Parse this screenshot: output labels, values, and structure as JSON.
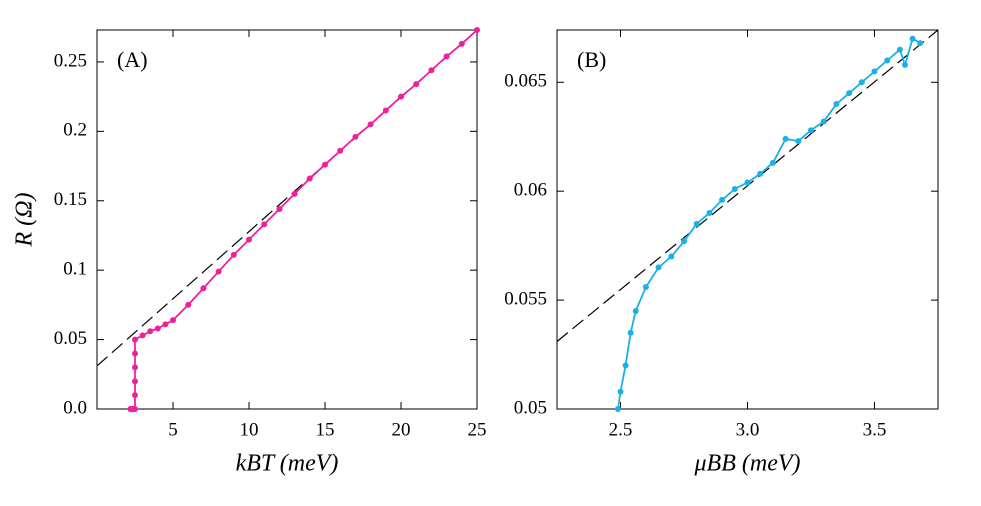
{
  "chart_data": [
    {
      "type": "line",
      "annotation": "(A)",
      "x_label": "kBT (meV)",
      "y_label": "R (Ω)",
      "xlim": [
        0,
        25
      ],
      "ylim": [
        0,
        0.273
      ],
      "xticks": [
        5,
        10,
        15,
        20,
        25
      ],
      "yticks": [
        {
          "value": 0,
          "label": "0.0"
        },
        0.05,
        0.1,
        0.15,
        0.2,
        0.25
      ],
      "series": [
        {
          "color": "#000000",
          "dashed": true,
          "markers": false,
          "x": [
            0,
            25
          ],
          "values": [
            0.031,
            0.273
          ]
        },
        {
          "color": "#f0209a",
          "dashed": false,
          "markers": true,
          "x": [
            2.2,
            2.3,
            2.4,
            2.45,
            2.5,
            2.5,
            2.5,
            2.5,
            2.5,
            2.5,
            3,
            3.5,
            4,
            4.5,
            5,
            6,
            7,
            8,
            9,
            10,
            11,
            12,
            13,
            14,
            15,
            16,
            17,
            18,
            19,
            20,
            21,
            22,
            23,
            24,
            25
          ],
          "values": [
            0,
            0,
            0,
            0,
            0,
            0.01,
            0.02,
            0.03,
            0.04,
            0.05,
            0.053,
            0.056,
            0.058,
            0.061,
            0.064,
            0.075,
            0.087,
            0.099,
            0.111,
            0.122,
            0.133,
            0.144,
            0.155,
            0.166,
            0.176,
            0.186,
            0.196,
            0.205,
            0.215,
            0.225,
            0.234,
            0.244,
            0.254,
            0.263,
            0.273
          ]
        }
      ]
    },
    {
      "type": "line",
      "annotation": "(B)",
      "x_label": "μBB (meV)",
      "xlim": [
        2.25,
        3.75
      ],
      "ylim": [
        0.05,
        0.0674
      ],
      "xticks": [
        2.5,
        {
          "value": 3,
          "label": "3.0"
        },
        3.5
      ],
      "yticks": [
        0.05,
        0.055,
        0.06,
        0.065
      ],
      "series": [
        {
          "color": "#000000",
          "dashed": true,
          "markers": false,
          "x": [
            2.25,
            3.75
          ],
          "values": [
            0.0531,
            0.0674
          ]
        },
        {
          "color": "#1ab0e8",
          "dashed": false,
          "markers": true,
          "x": [
            2.49,
            2.5,
            2.52,
            2.54,
            2.56,
            2.6,
            2.65,
            2.7,
            2.75,
            2.8,
            2.85,
            2.9,
            2.95,
            3.0,
            3.05,
            3.1,
            3.15,
            3.2,
            3.25,
            3.3,
            3.35,
            3.4,
            3.45,
            3.5,
            3.55,
            3.6,
            3.62,
            3.65,
            3.68
          ],
          "values": [
            0.05,
            0.0508,
            0.052,
            0.0535,
            0.0545,
            0.0556,
            0.0565,
            0.057,
            0.0577,
            0.0585,
            0.059,
            0.0596,
            0.0601,
            0.0604,
            0.0608,
            0.0613,
            0.0624,
            0.0623,
            0.0628,
            0.0632,
            0.064,
            0.0645,
            0.065,
            0.0655,
            0.066,
            0.0665,
            0.0658,
            0.067,
            0.0668
          ]
        }
      ]
    }
  ]
}
